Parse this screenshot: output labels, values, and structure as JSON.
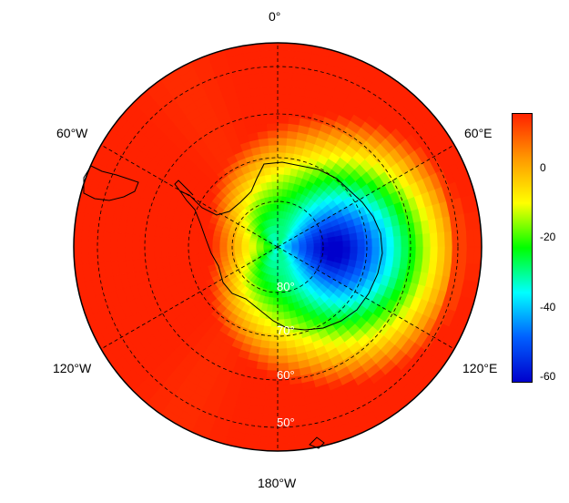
{
  "map": {
    "projection": "south polar stereographic",
    "field_description_colors": {
      "min_value": -62,
      "max_value": 15
    },
    "longitude_labels": {
      "top": "0°",
      "upper_left": "60°W",
      "upper_right": "60°E",
      "lower_left": "120°W",
      "lower_right": "120°E",
      "bottom": "180°W"
    },
    "latitude_labels": [
      "80°",
      "70°",
      "60°",
      "50°"
    ],
    "grid": "dashed"
  },
  "colorbar": {
    "tick_labels": [
      "0",
      "-20",
      "-40",
      "-60"
    ],
    "tick_values": [
      0,
      -20,
      -40,
      -60
    ],
    "range": [
      -62,
      15
    ],
    "colors": [
      "#0000cc",
      "#0060ff",
      "#00ffff",
      "#00ff00",
      "#ffff00",
      "#ff9900",
      "#ff2200"
    ]
  }
}
